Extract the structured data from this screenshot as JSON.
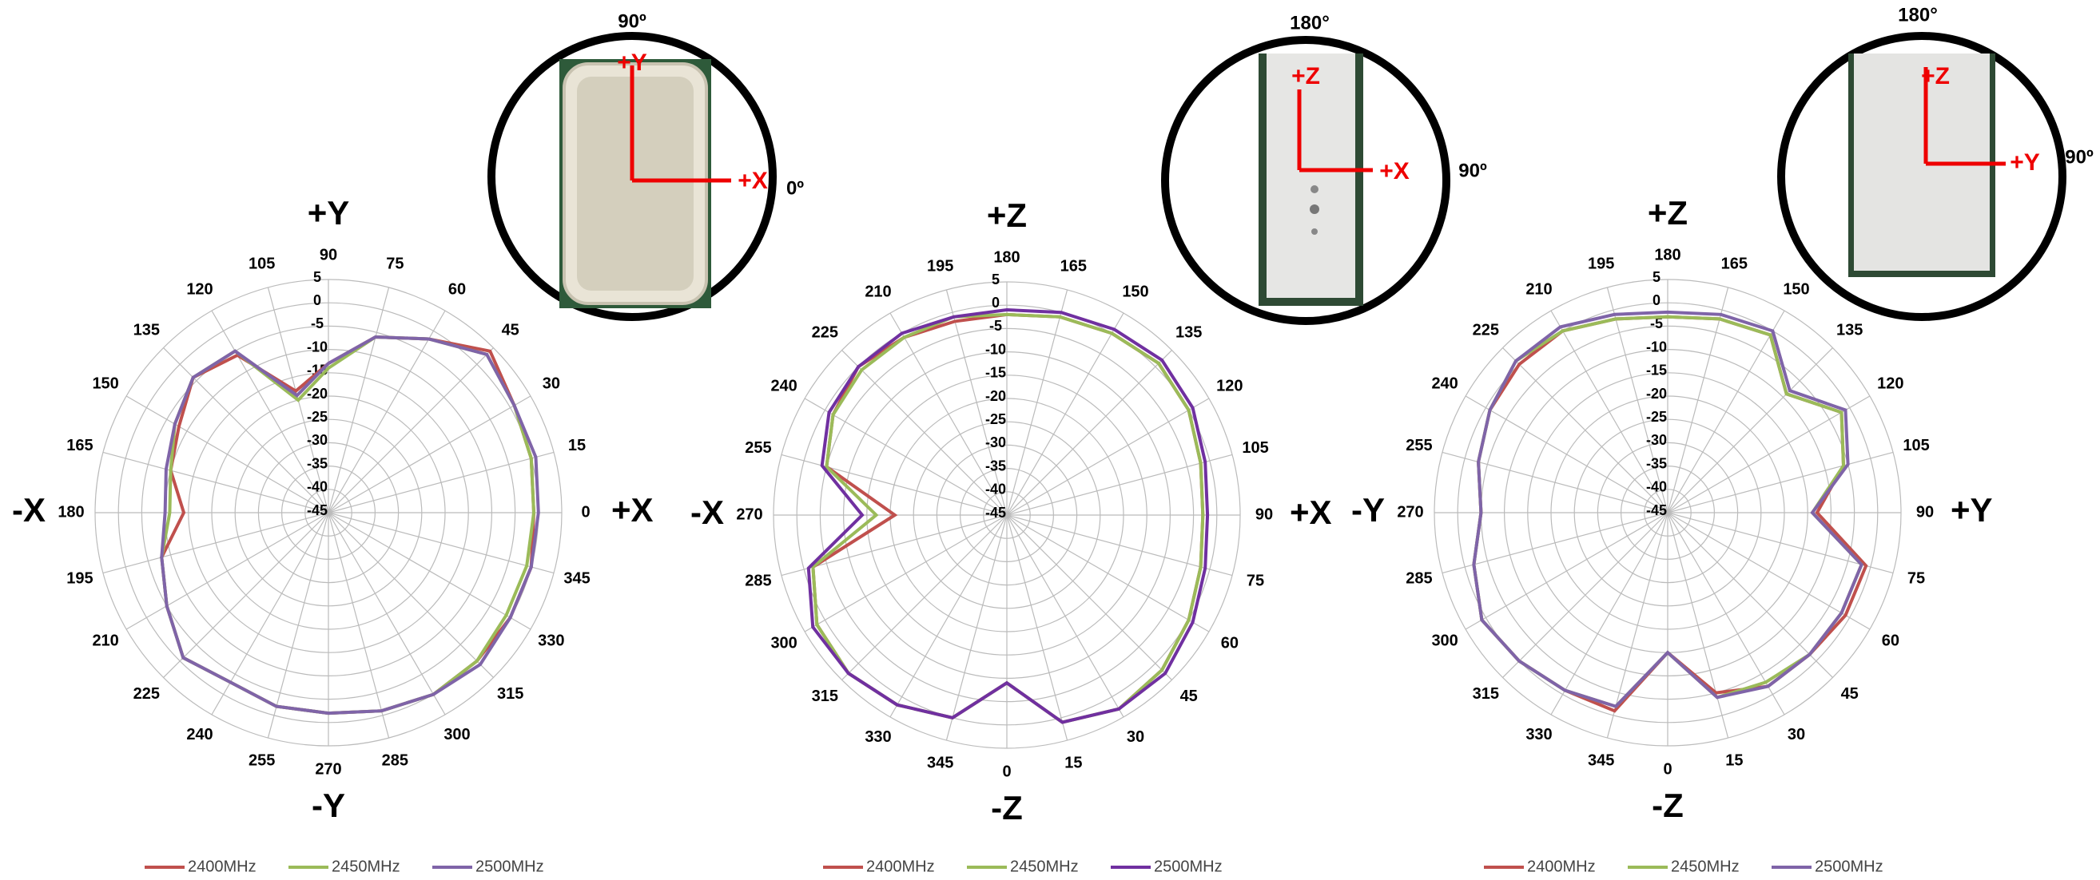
{
  "chart_data": [
    {
      "type": "polar",
      "zero_location": "E",
      "direction": "counterclockwise",
      "axis_labels": {
        "top": "+Y",
        "bottom": "-Y",
        "left": "-X",
        "right": "+X"
      },
      "inset": {
        "top_label": "90º",
        "side_label": "0º",
        "up_axis": "+Y",
        "right_axis": "+X"
      },
      "x": [
        0,
        15,
        30,
        45,
        60,
        75,
        90,
        105,
        120,
        135,
        150,
        165,
        180,
        195,
        210,
        225,
        240,
        255,
        270,
        285,
        300,
        315,
        330,
        345
      ],
      "xticks": [
        0,
        15,
        30,
        45,
        60,
        75,
        90,
        105,
        120,
        135,
        150,
        165,
        180,
        195,
        210,
        225,
        240,
        255,
        270,
        285,
        300,
        315,
        330,
        345
      ],
      "ylim": [
        -45,
        5
      ],
      "yticks": [
        5,
        0,
        -5,
        -10,
        -15,
        -20,
        -25,
        -30,
        -35,
        -40,
        -45
      ],
      "grid": true,
      "series": [
        {
          "name": "2400MHz",
          "color": "#c0504d",
          "values": [
            -1,
            0,
            1,
            4,
            -2,
            -6,
            -13,
            -18,
            -6,
            -4,
            -8,
            -10,
            -14,
            -8,
            -5,
            -1,
            -3,
            -2,
            -2,
            -1,
            0,
            0,
            0,
            0
          ]
        },
        {
          "name": "2450MHz",
          "color": "#9bbb59",
          "values": [
            -1,
            0,
            1,
            3,
            -2,
            -6,
            -14,
            -20,
            -5,
            -4,
            -7,
            -10,
            -11,
            -8,
            -5,
            -1,
            -3,
            -2,
            -2,
            -1,
            0,
            0,
            -1,
            -1
          ]
        },
        {
          "name": "2500MHz",
          "color": "#7f64a8",
          "values": [
            0,
            1,
            1,
            3,
            -2,
            -6,
            -13,
            -19,
            -5,
            -4,
            -7,
            -9,
            -10,
            -8,
            -5,
            -1,
            -3,
            -2,
            -2,
            -1,
            0,
            1,
            0,
            0
          ]
        }
      ]
    },
    {
      "type": "polar",
      "zero_location": "S",
      "direction": "counterclockwise",
      "axis_labels": {
        "top": "+Z",
        "bottom": "-Z",
        "left": "-X",
        "right": "+X"
      },
      "inset": {
        "top_label": "180°",
        "side_label": "90º",
        "up_axis": "+Z",
        "right_axis": "+X"
      },
      "x": [
        0,
        15,
        30,
        45,
        60,
        75,
        90,
        105,
        120,
        135,
        150,
        165,
        180,
        195,
        210,
        225,
        240,
        255,
        270,
        285,
        300,
        315,
        330,
        345
      ],
      "xticks": [
        0,
        15,
        30,
        45,
        60,
        75,
        90,
        105,
        120,
        135,
        150,
        165,
        180,
        195,
        210,
        225,
        240,
        255,
        270,
        285,
        300,
        315,
        330,
        345
      ],
      "ylim": [
        -45,
        5
      ],
      "yticks": [
        5,
        0,
        -5,
        -10,
        -15,
        -20,
        -25,
        -30,
        -35,
        -40,
        -45
      ],
      "grid": true,
      "series": [
        {
          "name": "2400MHz",
          "color": "#c0504d",
          "values": [
            -9,
            1,
            3,
            2,
            0,
            -2,
            -3,
            -2,
            0,
            1,
            0,
            -1,
            -2,
            -2,
            -1,
            0,
            -2,
            -5,
            -21,
            -2,
            2,
            3,
            2,
            0
          ]
        },
        {
          "name": "2450MHz",
          "color": "#9bbb59",
          "values": [
            -9,
            1,
            3,
            2,
            0,
            -2,
            -3,
            -2,
            0,
            1,
            0,
            -1,
            -2,
            -1,
            -1,
            -1,
            -2,
            -5,
            -17,
            -2,
            2,
            3,
            2,
            0
          ]
        },
        {
          "name": "2500MHz",
          "color": "#7030a0",
          "values": [
            -9,
            1,
            3,
            3,
            1,
            -1,
            -2,
            -1,
            1,
            2,
            1,
            0,
            -1,
            -1,
            0,
            0,
            -1,
            -4,
            -14,
            -1,
            3,
            3,
            2,
            0
          ]
        }
      ]
    },
    {
      "type": "polar",
      "zero_location": "S",
      "direction": "counterclockwise",
      "axis_labels": {
        "top": "+Z",
        "bottom": "-Z",
        "left": "-Y",
        "right": "+Y"
      },
      "inset": {
        "top_label": "180°",
        "side_label": "90º",
        "up_axis": "+Z",
        "right_axis": "+Y"
      },
      "x": [
        0,
        15,
        30,
        45,
        60,
        75,
        90,
        105,
        120,
        135,
        150,
        165,
        180,
        195,
        210,
        225,
        240,
        255,
        270,
        285,
        300,
        315,
        330,
        345
      ],
      "xticks": [
        0,
        15,
        30,
        45,
        60,
        75,
        90,
        105,
        120,
        135,
        150,
        165,
        180,
        195,
        210,
        225,
        240,
        255,
        270,
        285,
        300,
        315,
        330,
        345
      ],
      "ylim": [
        -45,
        5
      ],
      "yticks": [
        5,
        0,
        -5,
        -10,
        -15,
        -20,
        -25,
        -30,
        -35,
        -40,
        -45
      ],
      "grid": true,
      "series": [
        {
          "name": "2400MHz",
          "color": "#c0504d",
          "values": [
            -15,
            -5,
            -2,
            -2,
            -1,
            -1,
            -13,
            -6,
            -2,
            -9,
            -1,
            -2,
            -3,
            -2,
            0,
            0,
            -1,
            -3,
            -5,
            -2,
            1,
            0,
            -1,
            -1
          ]
        },
        {
          "name": "2450MHz",
          "color": "#9bbb59",
          "values": [
            -15,
            -4,
            -3,
            -2,
            -2,
            -2,
            -14,
            -6,
            -2,
            -9,
            -1,
            -2,
            -3,
            -2,
            0,
            1,
            -1,
            -3,
            -5,
            -2,
            1,
            0,
            -1,
            -2
          ]
        },
        {
          "name": "2500MHz",
          "color": "#7f64a8",
          "values": [
            -15,
            -4,
            -2,
            -2,
            -2,
            -2,
            -14,
            -5,
            -1,
            -8,
            0,
            -1,
            -2,
            -1,
            1,
            1,
            -1,
            -3,
            -5,
            -2,
            1,
            0,
            -1,
            -2
          ]
        }
      ]
    }
  ]
}
